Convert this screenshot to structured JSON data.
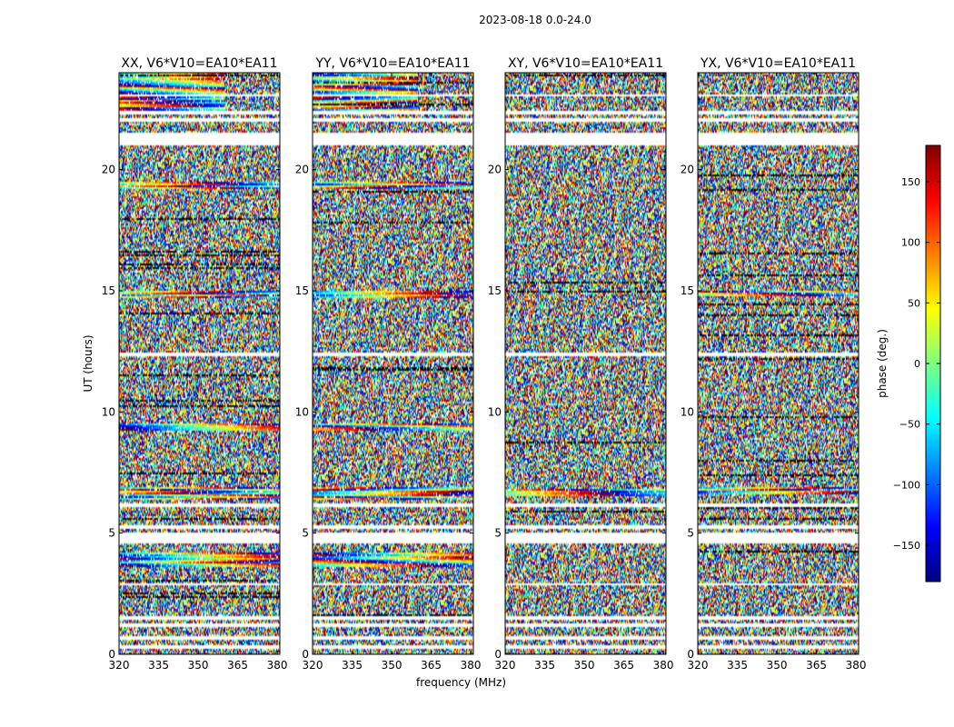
{
  "figure": {
    "suptitle": "2023-08-18 0.0-24.0",
    "shared_xlabel": "frequency (MHz)",
    "shared_ylabel": "UT (hours)"
  },
  "colorbar": {
    "label": "phase (deg.)",
    "range": [
      -180,
      180
    ],
    "ticks": [
      150,
      100,
      50,
      0,
      -50,
      -100,
      -150
    ],
    "tick_labels": [
      "150",
      "100",
      "50",
      "0",
      "−50",
      "−100",
      "−150"
    ],
    "colormap": "jet",
    "colors": [
      "#00007f",
      "#0000ff",
      "#007fff",
      "#00ffff",
      "#7fff7f",
      "#ffff00",
      "#ff7f00",
      "#ff0000",
      "#7f0000"
    ]
  },
  "chart_data": [
    {
      "type": "heatmap",
      "title": "XX, V6*V10=EA10*EA11",
      "xlabel": "",
      "ylabel": "UT (hours)",
      "xlim": [
        320,
        381
      ],
      "ylim": [
        0,
        24
      ],
      "xticks": [
        320,
        335,
        350,
        365,
        380
      ],
      "xtick_labels": [
        "320",
        "335",
        "350",
        "365",
        "380"
      ],
      "yticks": [
        0,
        5,
        10,
        15,
        20
      ],
      "ytick_labels": [
        "0",
        "5",
        "10",
        "15",
        "20"
      ],
      "value": "phase (deg.)",
      "coherent_bands_hours": [
        [
          22.3,
          24.0
        ],
        [
          6.4,
          6.9
        ],
        [
          9.2,
          9.5
        ],
        [
          3.6,
          4.2
        ],
        [
          14.7,
          15.0
        ],
        [
          19.2,
          19.5
        ]
      ]
    },
    {
      "type": "heatmap",
      "title": "YY, V6*V10=EA10*EA11",
      "xlabel": "frequency (MHz)",
      "ylabel": "",
      "xlim": [
        320,
        381
      ],
      "ylim": [
        0,
        24
      ],
      "xticks": [
        320,
        335,
        350,
        365,
        380
      ],
      "xtick_labels": [
        "320",
        "335",
        "350",
        "365",
        "380"
      ],
      "yticks": [
        0,
        5,
        10,
        15,
        20
      ],
      "ytick_labels": [
        "0",
        "5",
        "10",
        "15",
        "20"
      ],
      "value": "phase (deg.)",
      "coherent_bands_hours": [
        [
          22.3,
          24.0
        ],
        [
          6.4,
          6.9
        ],
        [
          9.2,
          9.5
        ],
        [
          3.6,
          4.2
        ],
        [
          14.7,
          15.0
        ],
        [
          19.2,
          19.5
        ]
      ]
    },
    {
      "type": "heatmap",
      "title": "XY, V6*V10=EA10*EA11",
      "xlabel": "",
      "ylabel": "",
      "xlim": [
        320,
        381
      ],
      "ylim": [
        0,
        24
      ],
      "xticks": [
        320,
        335,
        350,
        365,
        380
      ],
      "xtick_labels": [
        "320",
        "335",
        "350",
        "365",
        "380"
      ],
      "yticks": [
        0,
        5,
        10,
        15,
        20
      ],
      "ytick_labels": [
        "0",
        "5",
        "10",
        "15",
        "20"
      ],
      "value": "phase (deg.)",
      "coherent_bands_hours": [
        [
          6.5,
          6.8
        ]
      ]
    },
    {
      "type": "heatmap",
      "title": "YX, V6*V10=EA10*EA11",
      "xlabel": "",
      "ylabel": "",
      "xlim": [
        320,
        381
      ],
      "ylim": [
        0,
        24
      ],
      "xticks": [
        320,
        335,
        350,
        365,
        380
      ],
      "xtick_labels": [
        "320",
        "335",
        "350",
        "365",
        "380"
      ],
      "yticks": [
        0,
        5,
        10,
        15,
        20
      ],
      "ytick_labels": [
        "0",
        "5",
        "10",
        "15",
        "20"
      ],
      "value": "phase (deg.)",
      "coherent_bands_hours": [
        [
          6.6,
          6.9
        ],
        [
          14.8,
          15.0
        ]
      ]
    }
  ],
  "flagged_gaps_hours": [
    [
      0.25,
      0.35
    ],
    [
      0.6,
      0.72
    ],
    [
      1.15,
      1.3
    ],
    [
      1.4,
      1.6
    ],
    [
      2.85,
      2.95
    ],
    [
      4.6,
      5.0
    ],
    [
      5.15,
      5.3
    ],
    [
      6.1,
      6.25
    ],
    [
      12.3,
      12.45
    ],
    [
      21.0,
      21.55
    ],
    [
      22.0,
      22.1
    ],
    [
      22.3,
      22.4
    ],
    [
      23.0,
      23.1
    ]
  ]
}
